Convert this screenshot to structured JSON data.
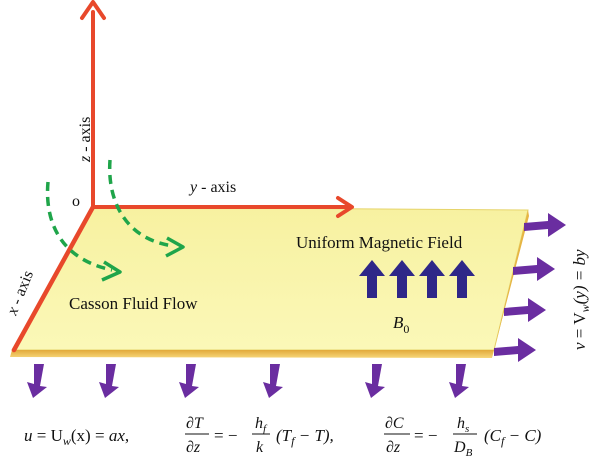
{
  "axes": {
    "z_label": "z",
    "z_suffix": " - axis",
    "y_label": "y",
    "y_suffix": " - axis",
    "x_label": "x",
    "x_suffix": " - axis",
    "origin_label": "o"
  },
  "sheet": {
    "field_label": "Uniform Magnetic Field",
    "flow_label": "Casson Fluid Flow",
    "b_symbol": "B",
    "b_subscript": "0"
  },
  "velocity_label": {
    "v": "v",
    "eq": " = V",
    "w": "w",
    "rest": "(y) = by"
  },
  "equations": {
    "eq1": {
      "u": "u",
      "eq": " = U",
      "w": "w",
      "x": "(x) = ",
      "ax": "ax",
      "comma": ","
    },
    "eq2": {
      "num": "∂T",
      "den": "∂z",
      "eq": "= −",
      "h": "h",
      "hsub": "f",
      "k": "k",
      "paren_open": "(T",
      "tsub": "f",
      "rest": " − T),"
    },
    "eq3": {
      "num": "∂C",
      "den": "∂z",
      "eq": "= −",
      "h": "h",
      "hsub": "s",
      "d": "D",
      "dsub": "B",
      "paren_open": "(C",
      "csub": "f",
      "rest": " − C)"
    }
  },
  "colors": {
    "axis": "#e8482b",
    "sheet_top": "#faf6a0",
    "sheet_edge": "#e8b83a",
    "arrow_purple": "#6a2da0",
    "field_arrow": "#2f2788",
    "flow_arrow": "#1fa54a"
  }
}
